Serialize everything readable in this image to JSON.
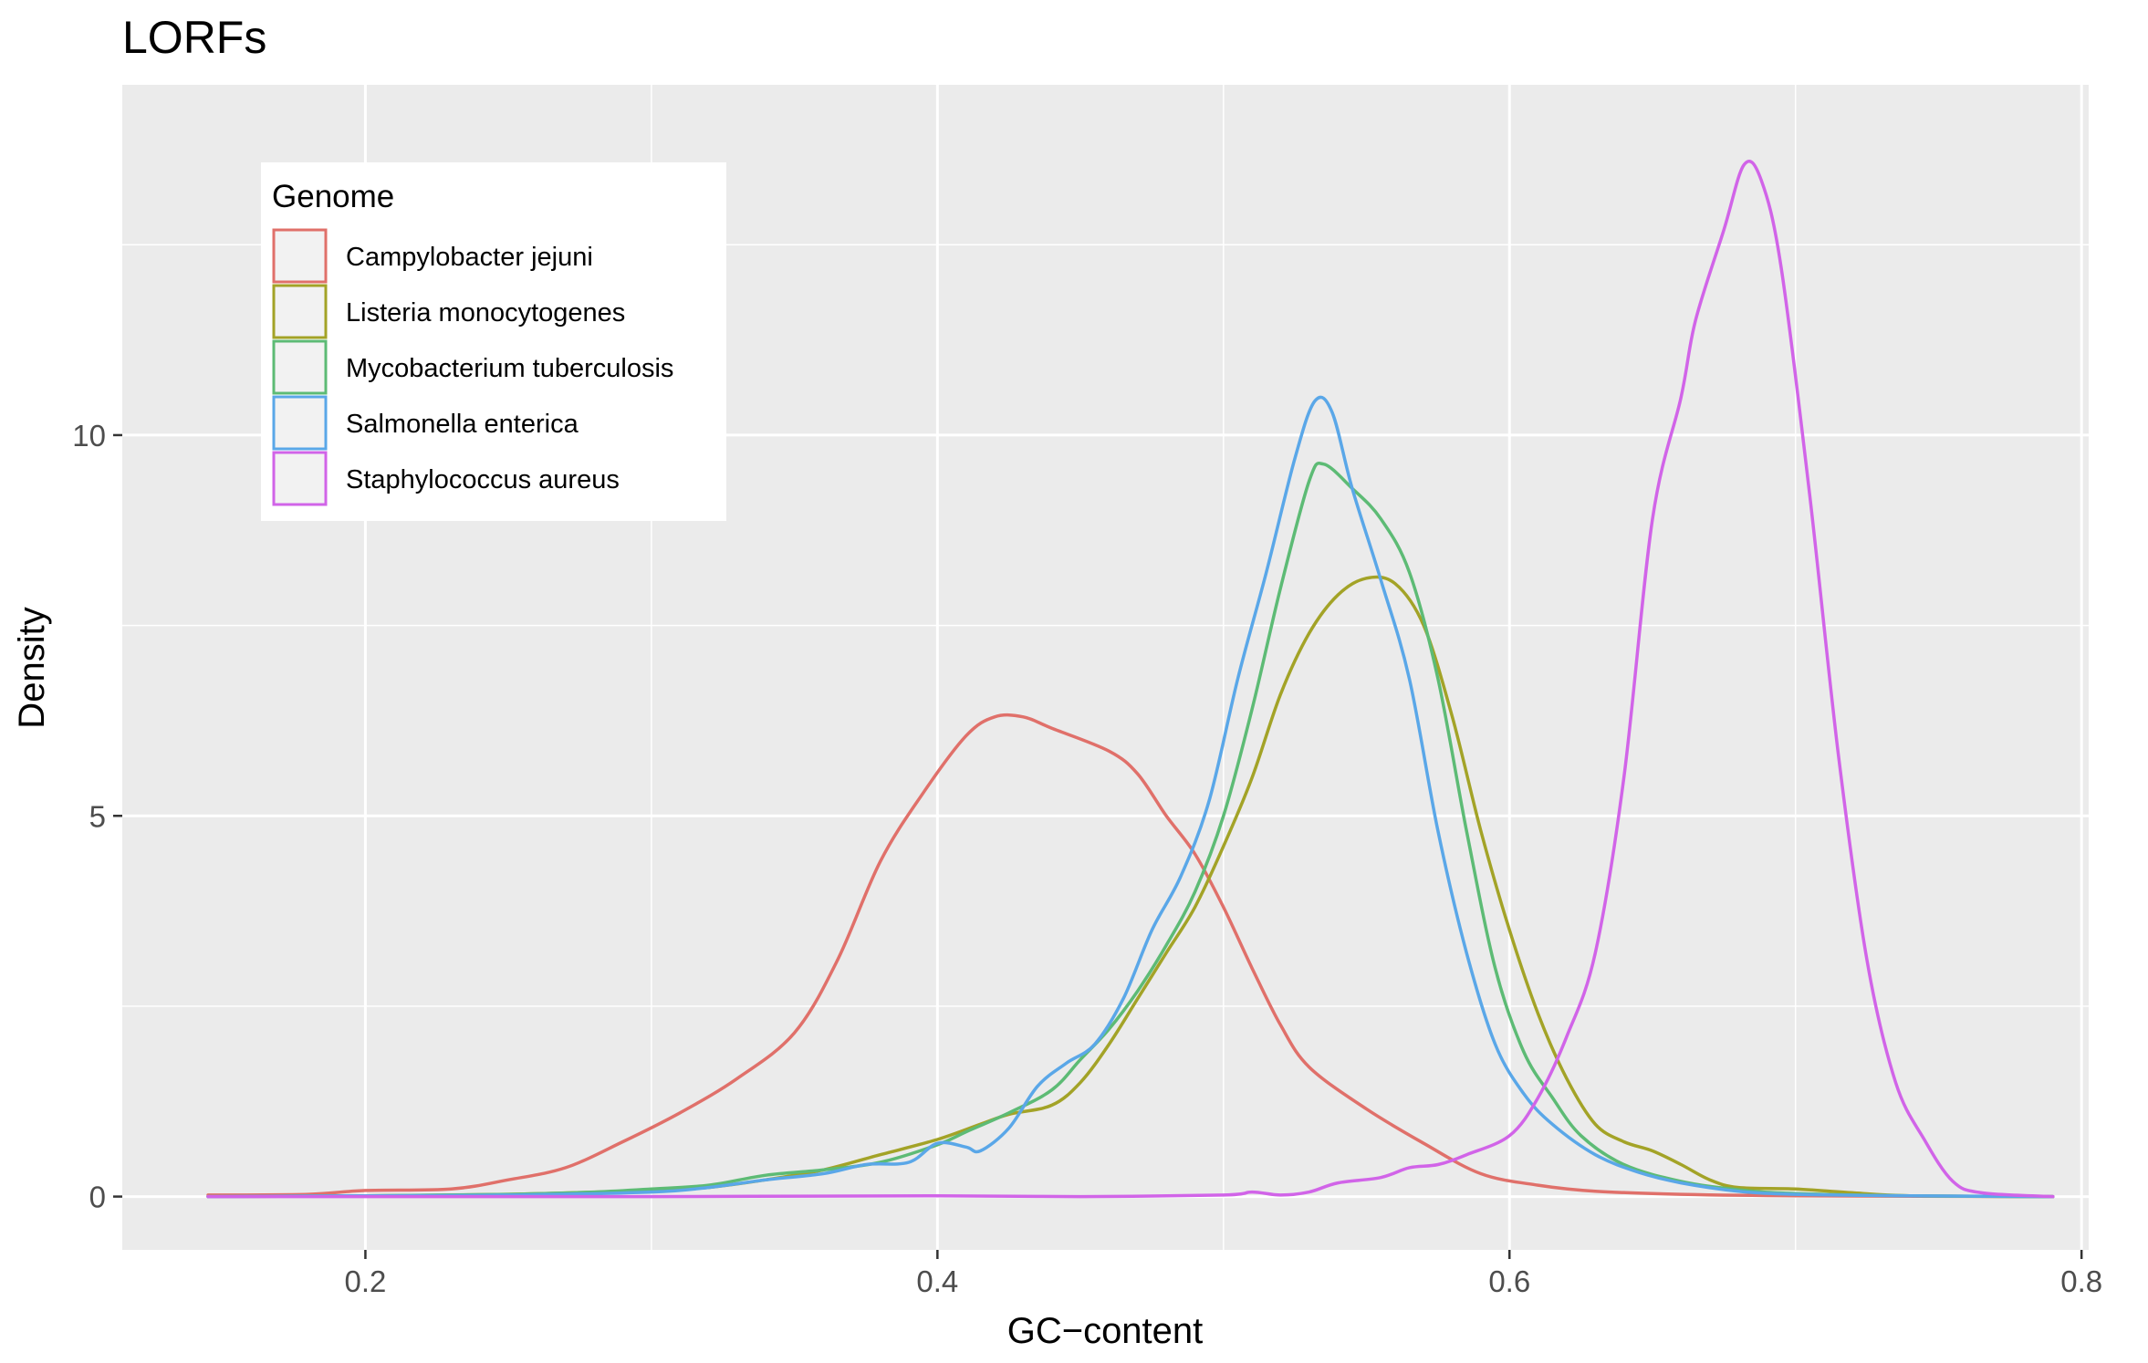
{
  "chart_data": {
    "type": "line",
    "title": "LORFs",
    "xlabel": "GC−content",
    "ylabel": "Density",
    "xlim": [
      0.115,
      0.8025
    ],
    "ylim": [
      -0.7,
      14.6
    ],
    "x_ticks": [
      0.2,
      0.4,
      0.6,
      0.8
    ],
    "x_tick_labels": [
      "0.2",
      "0.4",
      "0.6",
      "0.8"
    ],
    "y_ticks": [
      0,
      5,
      10
    ],
    "y_tick_labels": [
      "0",
      "5",
      "10"
    ],
    "x_minor_ticks": [
      0.3,
      0.5,
      0.7
    ],
    "y_minor_ticks": [
      2.5,
      7.5,
      12.5
    ],
    "grid": true,
    "legend": {
      "title": "Genome",
      "position": "top-left"
    },
    "series": [
      {
        "name": "Campylobacter jejuni",
        "color": "#E0706A",
        "points": [
          [
            0.145,
            0.02
          ],
          [
            0.18,
            0.03
          ],
          [
            0.2,
            0.08
          ],
          [
            0.23,
            0.1
          ],
          [
            0.25,
            0.22
          ],
          [
            0.27,
            0.38
          ],
          [
            0.29,
            0.72
          ],
          [
            0.31,
            1.1
          ],
          [
            0.33,
            1.55
          ],
          [
            0.35,
            2.15
          ],
          [
            0.365,
            3.1
          ],
          [
            0.38,
            4.4
          ],
          [
            0.395,
            5.3
          ],
          [
            0.41,
            6.05
          ],
          [
            0.42,
            6.3
          ],
          [
            0.43,
            6.3
          ],
          [
            0.44,
            6.15
          ],
          [
            0.46,
            5.85
          ],
          [
            0.47,
            5.55
          ],
          [
            0.48,
            5.0
          ],
          [
            0.49,
            4.5
          ],
          [
            0.5,
            3.8
          ],
          [
            0.51,
            3.0
          ],
          [
            0.52,
            2.25
          ],
          [
            0.53,
            1.7
          ],
          [
            0.55,
            1.15
          ],
          [
            0.57,
            0.7
          ],
          [
            0.59,
            0.3
          ],
          [
            0.61,
            0.15
          ],
          [
            0.63,
            0.07
          ],
          [
            0.66,
            0.03
          ],
          [
            0.7,
            0.01
          ],
          [
            0.79,
            0.0
          ]
        ]
      },
      {
        "name": "Listeria monocytogenes",
        "color": "#A3A327",
        "points": [
          [
            0.145,
            0.0
          ],
          [
            0.2,
            0.01
          ],
          [
            0.25,
            0.03
          ],
          [
            0.3,
            0.08
          ],
          [
            0.32,
            0.12
          ],
          [
            0.34,
            0.22
          ],
          [
            0.36,
            0.35
          ],
          [
            0.38,
            0.55
          ],
          [
            0.4,
            0.75
          ],
          [
            0.415,
            0.95
          ],
          [
            0.425,
            1.08
          ],
          [
            0.44,
            1.2
          ],
          [
            0.45,
            1.5
          ],
          [
            0.46,
            2.0
          ],
          [
            0.47,
            2.6
          ],
          [
            0.48,
            3.2
          ],
          [
            0.49,
            3.8
          ],
          [
            0.5,
            4.6
          ],
          [
            0.51,
            5.5
          ],
          [
            0.52,
            6.6
          ],
          [
            0.53,
            7.4
          ],
          [
            0.54,
            7.9
          ],
          [
            0.55,
            8.12
          ],
          [
            0.56,
            8.05
          ],
          [
            0.57,
            7.5
          ],
          [
            0.58,
            6.3
          ],
          [
            0.59,
            4.8
          ],
          [
            0.6,
            3.5
          ],
          [
            0.61,
            2.4
          ],
          [
            0.62,
            1.55
          ],
          [
            0.63,
            0.95
          ],
          [
            0.64,
            0.72
          ],
          [
            0.65,
            0.6
          ],
          [
            0.66,
            0.42
          ],
          [
            0.67,
            0.22
          ],
          [
            0.68,
            0.12
          ],
          [
            0.7,
            0.1
          ],
          [
            0.72,
            0.05
          ],
          [
            0.74,
            0.01
          ],
          [
            0.79,
            0.0
          ]
        ]
      },
      {
        "name": "Mycobacterium tuberculosis",
        "color": "#5DBB75",
        "points": [
          [
            0.145,
            0.0
          ],
          [
            0.2,
            0.01
          ],
          [
            0.25,
            0.03
          ],
          [
            0.28,
            0.06
          ],
          [
            0.3,
            0.1
          ],
          [
            0.32,
            0.15
          ],
          [
            0.34,
            0.28
          ],
          [
            0.36,
            0.35
          ],
          [
            0.38,
            0.45
          ],
          [
            0.4,
            0.68
          ],
          [
            0.41,
            0.85
          ],
          [
            0.425,
            1.1
          ],
          [
            0.44,
            1.4
          ],
          [
            0.45,
            1.8
          ],
          [
            0.46,
            2.2
          ],
          [
            0.47,
            2.7
          ],
          [
            0.48,
            3.3
          ],
          [
            0.49,
            4.0
          ],
          [
            0.5,
            5.0
          ],
          [
            0.51,
            6.4
          ],
          [
            0.52,
            8.0
          ],
          [
            0.53,
            9.4
          ],
          [
            0.535,
            9.62
          ],
          [
            0.545,
            9.3
          ],
          [
            0.555,
            8.9
          ],
          [
            0.565,
            8.2
          ],
          [
            0.575,
            6.8
          ],
          [
            0.585,
            4.8
          ],
          [
            0.595,
            3.0
          ],
          [
            0.605,
            1.9
          ],
          [
            0.615,
            1.3
          ],
          [
            0.625,
            0.8
          ],
          [
            0.64,
            0.42
          ],
          [
            0.66,
            0.2
          ],
          [
            0.68,
            0.09
          ],
          [
            0.7,
            0.04
          ],
          [
            0.74,
            0.01
          ],
          [
            0.79,
            0.0
          ]
        ]
      },
      {
        "name": "Salmonella enterica",
        "color": "#5AA7E8",
        "points": [
          [
            0.145,
            0.0
          ],
          [
            0.2,
            0.01
          ],
          [
            0.25,
            0.02
          ],
          [
            0.3,
            0.06
          ],
          [
            0.32,
            0.12
          ],
          [
            0.34,
            0.22
          ],
          [
            0.36,
            0.3
          ],
          [
            0.375,
            0.42
          ],
          [
            0.39,
            0.45
          ],
          [
            0.4,
            0.7
          ],
          [
            0.41,
            0.65
          ],
          [
            0.415,
            0.6
          ],
          [
            0.425,
            0.9
          ],
          [
            0.435,
            1.45
          ],
          [
            0.445,
            1.75
          ],
          [
            0.455,
            2.0
          ],
          [
            0.465,
            2.6
          ],
          [
            0.475,
            3.5
          ],
          [
            0.485,
            4.2
          ],
          [
            0.495,
            5.2
          ],
          [
            0.505,
            6.8
          ],
          [
            0.515,
            8.2
          ],
          [
            0.525,
            9.7
          ],
          [
            0.532,
            10.45
          ],
          [
            0.538,
            10.3
          ],
          [
            0.545,
            9.3
          ],
          [
            0.555,
            8.1
          ],
          [
            0.565,
            6.8
          ],
          [
            0.575,
            4.8
          ],
          [
            0.585,
            3.2
          ],
          [
            0.595,
            2.0
          ],
          [
            0.605,
            1.35
          ],
          [
            0.615,
            0.95
          ],
          [
            0.63,
            0.55
          ],
          [
            0.645,
            0.32
          ],
          [
            0.66,
            0.18
          ],
          [
            0.68,
            0.07
          ],
          [
            0.7,
            0.03
          ],
          [
            0.74,
            0.01
          ],
          [
            0.79,
            0.0
          ]
        ]
      },
      {
        "name": "Staphylococcus aureus",
        "color": "#D164E8",
        "points": [
          [
            0.145,
            0.0
          ],
          [
            0.2,
            0.0
          ],
          [
            0.3,
            0.0
          ],
          [
            0.4,
            0.01
          ],
          [
            0.45,
            0.0
          ],
          [
            0.5,
            0.02
          ],
          [
            0.51,
            0.06
          ],
          [
            0.52,
            0.02
          ],
          [
            0.53,
            0.06
          ],
          [
            0.54,
            0.18
          ],
          [
            0.555,
            0.25
          ],
          [
            0.565,
            0.38
          ],
          [
            0.575,
            0.42
          ],
          [
            0.585,
            0.55
          ],
          [
            0.6,
            0.8
          ],
          [
            0.61,
            1.3
          ],
          [
            0.62,
            2.1
          ],
          [
            0.63,
            3.2
          ],
          [
            0.64,
            5.5
          ],
          [
            0.65,
            8.9
          ],
          [
            0.66,
            10.5
          ],
          [
            0.665,
            11.5
          ],
          [
            0.675,
            12.7
          ],
          [
            0.682,
            13.55
          ],
          [
            0.688,
            13.35
          ],
          [
            0.695,
            12.2
          ],
          [
            0.705,
            9.2
          ],
          [
            0.715,
            5.8
          ],
          [
            0.725,
            3.1
          ],
          [
            0.735,
            1.5
          ],
          [
            0.745,
            0.75
          ],
          [
            0.755,
            0.2
          ],
          [
            0.765,
            0.05
          ],
          [
            0.79,
            0.0
          ]
        ]
      }
    ]
  }
}
